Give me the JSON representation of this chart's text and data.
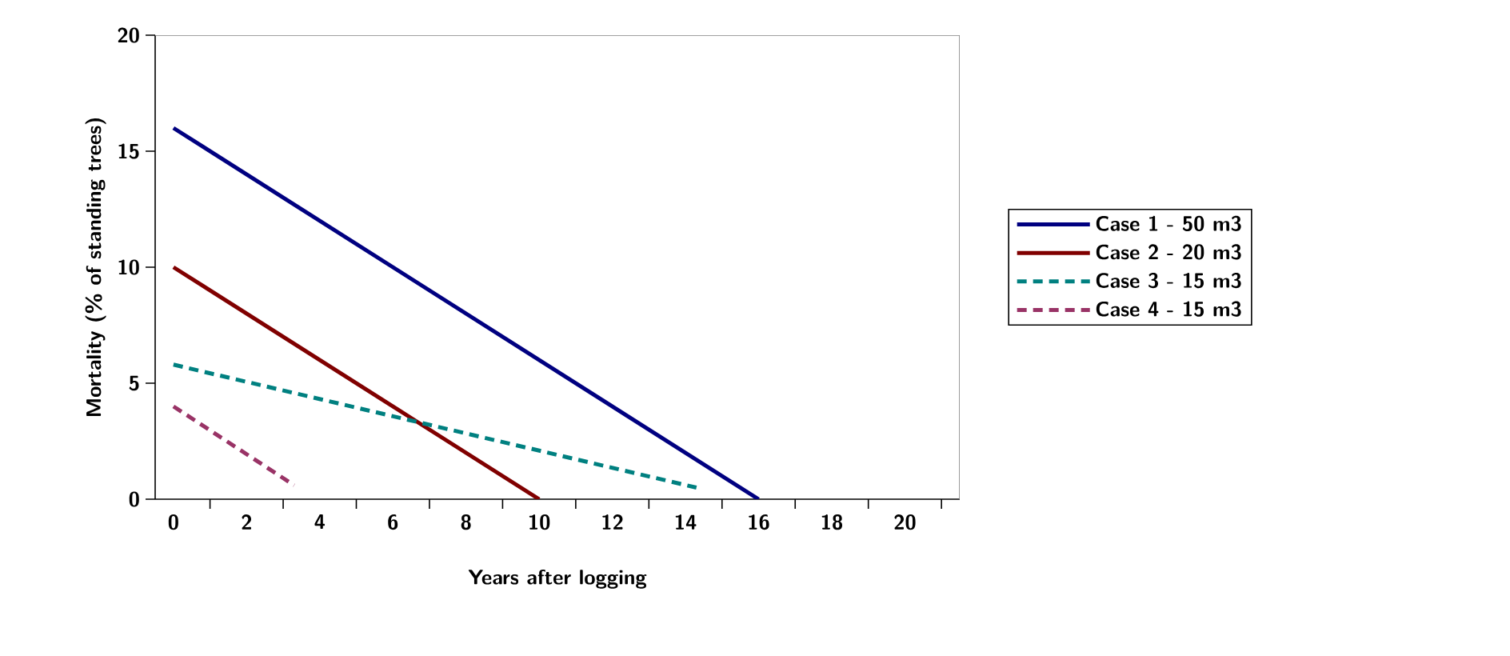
{
  "chart_data": {
    "type": "line",
    "xlabel": "Years after logging",
    "ylabel": "Mortality (% of standing trees)",
    "series": [
      {
        "name": "Case 1 - 50 m3",
        "color": "#000080",
        "x": [
          0,
          16
        ],
        "values": [
          16,
          0
        ],
        "line_style": "solid"
      },
      {
        "name": "Case 2 - 20 m3",
        "color": "#800000",
        "x": [
          0,
          10
        ],
        "values": [
          10,
          0
        ],
        "line_style": "solid"
      },
      {
        "name": "Case 3 - 15 m3",
        "color": "#008080",
        "x": [
          0,
          14.3
        ],
        "values": [
          5.8,
          0.5
        ],
        "line_style": "dashed"
      },
      {
        "name": "Case 4 - 15 m3",
        "color": "#993366",
        "x": [
          0,
          3.3
        ],
        "values": [
          4,
          0.6
        ],
        "line_style": "dashed"
      }
    ],
    "xlim": [
      -0.5,
      21.5
    ],
    "ylim": [
      0,
      20
    ],
    "xticks": [
      0,
      2,
      4,
      6,
      8,
      10,
      12,
      14,
      16,
      18,
      20,
      {
        "value": 1,
        "label": null
      },
      {
        "value": 3,
        "label": null
      },
      {
        "value": 5,
        "label": null
      },
      {
        "value": 7,
        "label": null
      },
      {
        "value": 9,
        "label": null
      },
      {
        "value": 11,
        "label": null
      },
      {
        "value": 13,
        "label": null
      },
      {
        "value": 15,
        "label": null
      },
      {
        "value": 17,
        "label": null
      },
      {
        "value": 19,
        "label": null
      },
      {
        "value": 21,
        "label": null
      }
    ],
    "yticks": [
      0,
      5,
      10,
      15,
      20
    ],
    "legend": "right",
    "marker": "none",
    "grid": false
  }
}
